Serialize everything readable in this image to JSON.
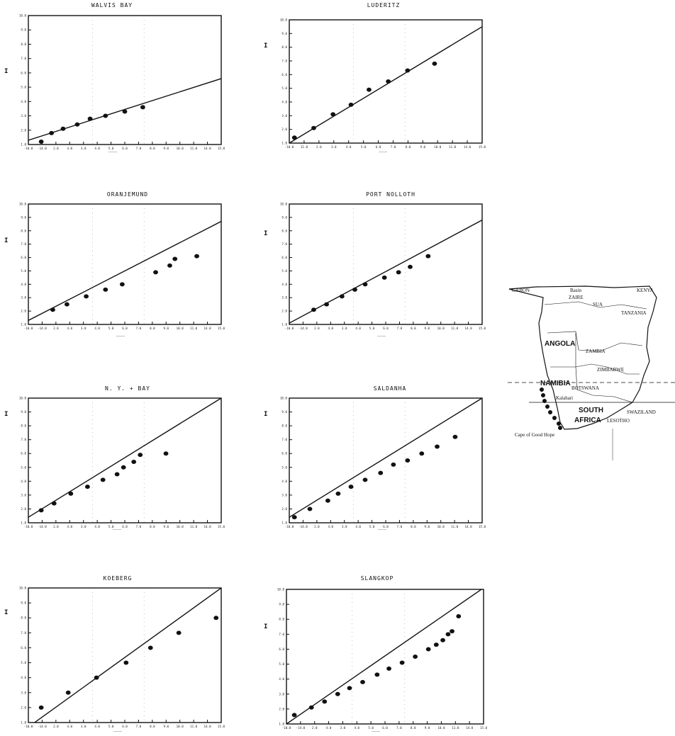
{
  "chart_data": [
    {
      "type": "scatter",
      "title": "WALVIS BAY",
      "ylabel": "I",
      "x_ticks": [
        "-10.0",
        "-14.0",
        "2.0",
        "4.0",
        "3.0",
        "4.0",
        "5.0",
        "6.0",
        "7.0",
        "8.0",
        "9.0",
        "10.0",
        "11.0",
        "14.0",
        "15.0"
      ],
      "y_ticks": [
        "10.0",
        "9.0",
        "8.0",
        "7.0",
        "6.0",
        "5.0",
        "4.0",
        "3.0",
        "2.0",
        "1.0"
      ],
      "xlim": [
        -1.0,
        14.0
      ],
      "ylim": [
        1.0,
        10.0
      ],
      "fit_line": {
        "x": [
          -1.0,
          14.0
        ],
        "y": [
          1.3,
          5.6
        ]
      },
      "points": {
        "x": [
          0.0,
          0.8,
          1.7,
          2.8,
          3.8,
          5.0,
          6.5,
          7.9
        ],
        "y": [
          1.2,
          1.8,
          2.1,
          2.4,
          2.8,
          3.0,
          3.3,
          3.6
        ]
      }
    },
    {
      "type": "scatter",
      "title": "LUDERITZ",
      "ylabel": "I",
      "x_ticks": [
        "-10.0",
        "11.0",
        "2.0",
        "3.0",
        "4.0",
        "5.0",
        "6.0",
        "7.0",
        "8.0",
        "9.0",
        "10.0",
        "11.0",
        "14.0",
        "15.0"
      ],
      "y_ticks": [
        "10.0",
        "9.0",
        "8.0",
        "7.0",
        "6.0",
        "5.0",
        "4.0",
        "3.0",
        "2.0",
        "1.0"
      ],
      "xlim": [
        -1.0,
        14.0
      ],
      "ylim": [
        1.0,
        10.0
      ],
      "fit_line": {
        "x": [
          -1.0,
          14.0
        ],
        "y": [
          1.0,
          9.5
        ]
      },
      "points": {
        "x": [
          -0.6,
          0.9,
          2.4,
          3.8,
          5.2,
          6.7,
          8.2,
          10.3
        ],
        "y": [
          1.4,
          2.1,
          3.1,
          3.8,
          4.9,
          5.5,
          6.3,
          6.8
        ]
      }
    },
    {
      "type": "scatter",
      "title": "ORANJEMUND",
      "ylabel": "I",
      "x_ticks": [
        "-10.0",
        "-14.0",
        "2.0",
        "4.0",
        "3.0",
        "4.0",
        "5.0",
        "6.0",
        "7.0",
        "8.0",
        "9.0",
        "10.0",
        "11.0",
        "14.0",
        "15.0"
      ],
      "y_ticks": [
        "10.0",
        "9.0",
        "8.0",
        "7.0",
        "6.0",
        "5.0",
        "4.0",
        "3.0",
        "2.0",
        "1.0"
      ],
      "xlim": [
        -1.0,
        14.0
      ],
      "ylim": [
        1.0,
        10.0
      ],
      "fit_line": {
        "x": [
          -1.0,
          14.0
        ],
        "y": [
          1.3,
          8.7
        ]
      },
      "points": {
        "x": [
          0.9,
          2.0,
          3.5,
          5.0,
          6.3,
          8.9,
          10.0,
          10.4,
          12.1
        ],
        "y": [
          2.1,
          2.5,
          3.1,
          3.6,
          4.0,
          4.9,
          5.4,
          5.9,
          6.1
        ]
      }
    },
    {
      "type": "scatter",
      "title": "PORT NOLLOTH",
      "ylabel": "I",
      "x_ticks": [
        "-10.0",
        "-14.0",
        "2.0",
        "4.0",
        "3.0",
        "4.0",
        "5.0",
        "6.0",
        "7.0",
        "8.0",
        "9.0",
        "10.0",
        "11.0",
        "14.0",
        "15.0"
      ],
      "y_ticks": [
        "10.0",
        "9.0",
        "8.0",
        "7.0",
        "6.0",
        "5.0",
        "4.0",
        "3.0",
        "2.0",
        "1.0"
      ],
      "xlim": [
        -1.0,
        14.0
      ],
      "ylim": [
        1.0,
        10.0
      ],
      "fit_line": {
        "x": [
          -1.0,
          14.0
        ],
        "y": [
          1.1,
          8.8
        ]
      },
      "points": {
        "x": [
          0.9,
          1.9,
          3.1,
          4.1,
          4.9,
          6.4,
          7.5,
          8.4,
          9.8
        ],
        "y": [
          2.1,
          2.5,
          3.1,
          3.6,
          4.0,
          4.5,
          4.9,
          5.3,
          6.1
        ]
      }
    },
    {
      "type": "scatter",
      "title": "N. Y. + BAY",
      "ylabel": "I",
      "x_ticks": [
        "-10.0",
        "-14.0",
        "2.0",
        "4.0",
        "3.0",
        "4.0",
        "5.0",
        "6.0",
        "7.0",
        "8.0",
        "9.0",
        "10.0",
        "11.0",
        "14.0",
        "15.0"
      ],
      "y_ticks": [
        "10.0",
        "9.0",
        "8.0",
        "7.0",
        "6.0",
        "5.0",
        "4.0",
        "3.0",
        "2.0",
        "1.0"
      ],
      "xlim": [
        -1.0,
        14.0
      ],
      "ylim": [
        1.0,
        10.0
      ],
      "fit_line": {
        "x": [
          -1.0,
          14.0
        ],
        "y": [
          1.4,
          10.0
        ]
      },
      "points": {
        "x": [
          0.0,
          1.0,
          2.3,
          3.6,
          4.8,
          5.9,
          6.4,
          7.2,
          7.7,
          9.7
        ],
        "y": [
          1.9,
          2.4,
          3.1,
          3.6,
          4.1,
          4.5,
          5.0,
          5.4,
          5.9,
          6.0
        ]
      }
    },
    {
      "type": "scatter",
      "title": "SALDANHA",
      "ylabel": "I",
      "x_ticks": [
        "-10.0",
        "-14.0",
        "2.0",
        "4.0",
        "3.0",
        "4.0",
        "5.0",
        "6.0",
        "7.0",
        "8.0",
        "9.0",
        "10.0",
        "11.0",
        "14.0",
        "15.0"
      ],
      "y_ticks": [
        "10.0",
        "9.0",
        "8.0",
        "7.0",
        "6.0",
        "5.0",
        "4.0",
        "3.0",
        "2.0",
        "1.0"
      ],
      "xlim": [
        -1.0,
        14.0
      ],
      "ylim": [
        1.0,
        10.0
      ],
      "fit_line": {
        "x": [
          -1.0,
          14.0
        ],
        "y": [
          1.4,
          10.0
        ]
      },
      "points": {
        "x": [
          -0.6,
          0.6,
          2.0,
          2.8,
          3.8,
          4.9,
          6.1,
          7.1,
          8.2,
          9.3,
          10.5,
          11.9
        ],
        "y": [
          1.4,
          2.0,
          2.6,
          3.1,
          3.6,
          4.1,
          4.6,
          5.2,
          5.5,
          6.0,
          6.5,
          7.2
        ]
      }
    },
    {
      "type": "scatter",
      "title": "KOEBERG",
      "ylabel": "I",
      "x_ticks": [
        "-10.0",
        "-14.0",
        "2.0",
        "4.0",
        "3.0",
        "4.0",
        "5.0",
        "6.0",
        "7.0",
        "8.0",
        "9.0",
        "10.0",
        "11.0",
        "14.0",
        "15.0"
      ],
      "y_ticks": [
        "10.0",
        "9.0",
        "8.0",
        "7.0",
        "6.0",
        "5.0",
        "4.0",
        "3.0",
        "2.0",
        "1.0"
      ],
      "xlim": [
        -1.0,
        14.0
      ],
      "ylim": [
        1.0,
        10.0
      ],
      "fit_line": {
        "x": [
          -1.0,
          14.0
        ],
        "y": [
          0.7,
          10.0
        ]
      },
      "points": {
        "x": [
          0.0,
          2.1,
          4.3,
          6.6,
          8.5,
          10.7,
          13.6
        ],
        "y": [
          2.0,
          3.0,
          4.0,
          5.0,
          6.0,
          7.0,
          8.0
        ]
      }
    },
    {
      "type": "scatter",
      "title": "SLANGKOP",
      "ylabel": "I",
      "x_ticks": [
        "-10.0",
        "-14.0",
        "2.0",
        "4.0",
        "3.0",
        "4.0",
        "5.0",
        "6.0",
        "7.0",
        "8.0",
        "9.0",
        "10.0",
        "11.0",
        "14.0",
        "15.0"
      ],
      "y_ticks": [
        "10.0",
        "9.0",
        "8.0",
        "7.0",
        "6.0",
        "5.0",
        "4.0",
        "3.0",
        "2.0",
        "1.0"
      ],
      "xlim": [
        -1.0,
        14.0
      ],
      "ylim": [
        1.0,
        10.0
      ],
      "fit_line": {
        "x": [
          -1.0,
          14.0
        ],
        "y": [
          1.0,
          10.1
        ]
      },
      "points": {
        "x": [
          -0.4,
          0.9,
          1.9,
          2.9,
          3.8,
          4.8,
          5.9,
          6.8,
          7.8,
          8.8,
          9.8,
          10.4,
          10.9,
          11.3,
          11.6,
          12.1
        ],
        "y": [
          1.6,
          2.1,
          2.5,
          3.0,
          3.4,
          3.8,
          4.3,
          4.7,
          5.1,
          5.5,
          6.0,
          6.3,
          6.6,
          7.0,
          7.2,
          8.2
        ]
      }
    }
  ],
  "map": {
    "labels": [
      "GABON",
      "Basin",
      "ZAIRE",
      "KENYA",
      "SUA",
      "TANZANIA",
      "ANGOLA",
      "ZAMBIA",
      "ZIMBABWE",
      "NAMIBIA",
      "BOTSWANA",
      "Kalahari",
      "SWAZILAND",
      "SOUTH",
      "AFRICA",
      "LESOTHO",
      "Cape of Good Hope"
    ],
    "colors": {
      "ink": "#111111",
      "grid": "#777777"
    }
  }
}
